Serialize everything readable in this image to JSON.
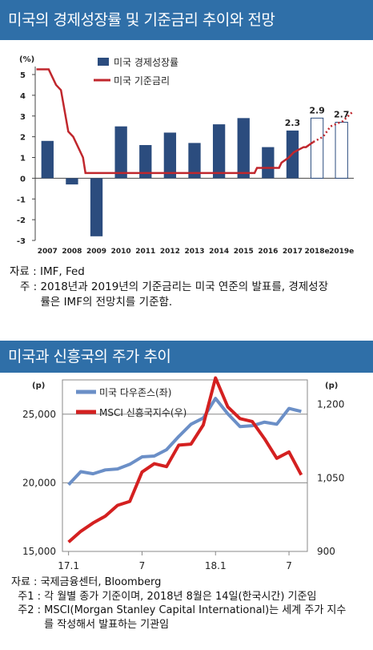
{
  "chart1": {
    "title": "미국의 경제성장률 및 기준금리 추이와 전망",
    "unit": "(%)",
    "legend": {
      "bar": "미국 경제성장률",
      "line": "미국 기준금리"
    },
    "colors": {
      "bar": "#2b4c7e",
      "line": "#c0272d",
      "forecast_bar_stroke": "#2b4c7e"
    },
    "notes": [
      {
        "label": "자료 : ",
        "text": "IMF, Fed"
      },
      {
        "label": "   주 : ",
        "text": "2018년과 2019년의 기준금리는 미국 연준의 발표를, 경제성장률은 IMF의 전망치를 기준함."
      }
    ]
  },
  "chart2": {
    "title": "미국과 신흥국의 주가 추이",
    "left_unit": "(p)",
    "right_unit": "(p)",
    "legend": {
      "dow": "미국 다우존스(좌)",
      "msci": "MSCI 신흥국지수(우)"
    },
    "colors": {
      "dow": "#6b8fc7",
      "msci": "#d42020"
    },
    "notes": [
      {
        "label": "자료 : ",
        "text": "국제금융센터, Bloomberg"
      },
      {
        "label": "  주1 : ",
        "text": "각 월별 종가 기준이며, 2018년 8월은 14일(한국시간) 기준임"
      },
      {
        "label": "  주2 : ",
        "text": "MSCI(Morgan Stanley Capital International)는 세계 주가 지수를 작성해서 발표하는 기관임"
      }
    ]
  },
  "chart_data": [
    {
      "type": "bar",
      "title": "미국의 경제성장률 및 기준금리 추이와 전망",
      "ylabel": "(%)",
      "ylim": [
        -3,
        5
      ],
      "yticks": [
        "-3",
        "-2",
        "-1",
        "0",
        "1",
        "2",
        "3",
        "4",
        "5"
      ],
      "categories": [
        "2007",
        "2008",
        "2009",
        "2010",
        "2011",
        "2012",
        "2013",
        "2014",
        "2015",
        "2016",
        "2017",
        "2018e",
        "2019e"
      ],
      "series": [
        {
          "name": "미국 경제성장률",
          "type": "bar",
          "values": [
            1.8,
            -0.3,
            -2.8,
            2.5,
            1.6,
            2.2,
            1.7,
            2.6,
            2.9,
            1.5,
            2.3,
            2.9,
            2.7
          ],
          "forecast_from_index": 11,
          "data_labels": {
            "10": "2.3",
            "11": "2.9",
            "12": "2.7"
          }
        },
        {
          "name": "미국 기준금리",
          "type": "line",
          "x": [
            2007.0,
            2007.5,
            2007.8,
            2008.0,
            2008.3,
            2008.5,
            2008.9,
            2009.0,
            2015.9,
            2016.0,
            2016.9,
            2017.0,
            2017.3,
            2017.5,
            2017.9,
            2018.0,
            2018.3,
            2018.7,
            2019.0,
            2019.5,
            2019.9
          ],
          "values": [
            5.25,
            5.25,
            4.5,
            4.25,
            2.25,
            2.0,
            1.0,
            0.25,
            0.25,
            0.5,
            0.5,
            0.75,
            1.0,
            1.25,
            1.5,
            1.5,
            1.75,
            2.0,
            2.5,
            2.75,
            3.2
          ],
          "forecast_from_x": 2018.5,
          "grid": false
        }
      ],
      "legend_position": "top-left"
    },
    {
      "type": "line",
      "title": "미국과 신흥국의 주가 추이",
      "x": [
        "17.1",
        "17.2",
        "17.3",
        "17.4",
        "17.5",
        "17.6",
        "17.7",
        "17.8",
        "17.9",
        "17.10",
        "17.11",
        "17.12",
        "18.1",
        "18.2",
        "18.3",
        "18.4",
        "18.5",
        "18.6",
        "18.7",
        "18.8"
      ],
      "xticks": [
        "17.1",
        "7",
        "18.1",
        "7"
      ],
      "left_ylim": [
        15000,
        27500
      ],
      "left_yticks": [
        "15,000",
        "20,000",
        "25,000"
      ],
      "right_ylim": [
        900,
        1250
      ],
      "right_yticks": [
        "900",
        "1,050",
        "1,200"
      ],
      "grid": true,
      "series": [
        {
          "name": "미국 다우존스(좌)",
          "axis": "left",
          "values": [
            19860,
            20810,
            20660,
            20940,
            21010,
            21350,
            21890,
            21950,
            22410,
            23380,
            24270,
            24720,
            26150,
            25030,
            24100,
            24160,
            24420,
            24270,
            25420,
            25200
          ]
        },
        {
          "name": "MSCI 신흥국지수(우)",
          "axis": "right",
          "values": [
            919,
            941,
            958,
            972,
            994,
            1002,
            1062,
            1079,
            1073,
            1117,
            1119,
            1158,
            1254,
            1195,
            1171,
            1165,
            1130,
            1090,
            1103,
            1056
          ]
        }
      ],
      "legend_position": "top-left"
    }
  ]
}
